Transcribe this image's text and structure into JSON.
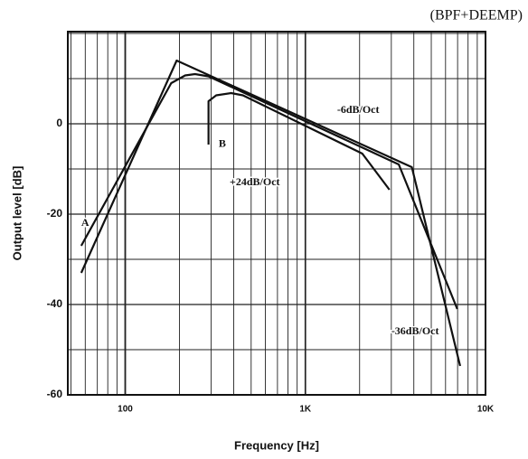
{
  "chart_data": {
    "type": "line",
    "title": "(BPF+DEEMP)",
    "x_label": "Frequency [Hz]",
    "y_label": "Output level [dB]",
    "log_x": true,
    "grid": true,
    "xlim": [
      48,
      10000
    ],
    "xticks": [
      {
        "value": 100,
        "label": "100"
      },
      {
        "value": 1000,
        "label": "1K"
      },
      {
        "value": 10000,
        "label": "10K"
      }
    ],
    "ylim": [
      -60,
      20.4
    ],
    "yticks": [
      -60,
      -40,
      -20,
      0
    ],
    "yminor": [
      -50,
      -30,
      -10,
      10,
      20
    ],
    "series": [
      {
        "color": "#111",
        "x": [
          57,
          193,
          3900,
          7230
        ],
        "values": [
          -33,
          14,
          -9.6,
          -53.6
        ]
      },
      {
        "name": "A",
        "color": "#111",
        "x": [
          57,
          180,
          215,
          244,
          290,
          3300,
          6970
        ],
        "values": [
          -27,
          9,
          10.7,
          11,
          10.5,
          -9,
          -41
        ]
      },
      {
        "name": "B",
        "color": "#111",
        "x": [
          290,
          290,
          320,
          387,
          450,
          2070,
          2930
        ],
        "values": [
          -4.6,
          5,
          6.3,
          6.8,
          6.3,
          -6.6,
          -14.6
        ]
      }
    ],
    "annotations": [
      {
        "text": "-6dB/Oct",
        "x": 1500,
        "y": 3
      },
      {
        "text": "+24dB/Oct",
        "x": 380,
        "y": -13
      },
      {
        "text": "-36dB/Oct",
        "x": 3000,
        "y": -46
      },
      {
        "text": "A",
        "x": 57,
        "y": -22
      },
      {
        "text": "B",
        "x": 330,
        "y": -4.5
      }
    ]
  }
}
